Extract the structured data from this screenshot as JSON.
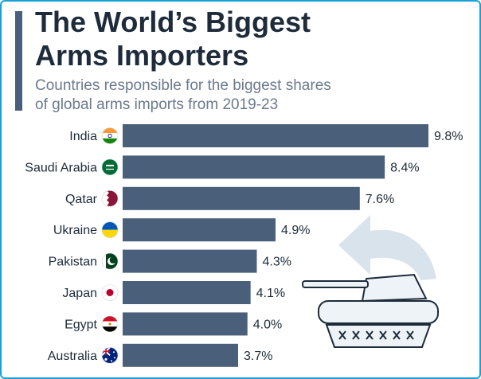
{
  "header": {
    "title_line1": "The World’s Biggest",
    "title_line2": "Arms Importers",
    "subtitle_line1": "Countries responsible for the biggest shares",
    "subtitle_line2": "of global arms imports from 2019-23"
  },
  "colors": {
    "bar": "#4a5f7a",
    "border": "#1a9fd6",
    "title": "#1d2b3a",
    "subtitle": "#6b7a8c",
    "illustration": "#d8e3eb"
  },
  "illustration": {
    "icons": [
      "curved-arrow-icon",
      "tank-icon"
    ]
  },
  "chart_data": {
    "type": "bar",
    "orientation": "horizontal",
    "categories": [
      "India",
      "Saudi Arabia",
      "Qatar",
      "Ukraine",
      "Pakistan",
      "Japan",
      "Egypt",
      "Australia"
    ],
    "values": [
      9.8,
      8.4,
      7.6,
      4.9,
      4.3,
      4.1,
      4.0,
      3.7
    ],
    "value_labels": [
      "9.8%",
      "8.4%",
      "7.6%",
      "4.9%",
      "4.3%",
      "4.1%",
      "4.0%",
      "3.7%"
    ],
    "flags": [
      "india-flag-icon",
      "saudi-arabia-flag-icon",
      "qatar-flag-icon",
      "ukraine-flag-icon",
      "pakistan-flag-icon",
      "japan-flag-icon",
      "egypt-flag-icon",
      "australia-flag-icon"
    ],
    "xlim": [
      0,
      9.8
    ],
    "grid": false
  }
}
